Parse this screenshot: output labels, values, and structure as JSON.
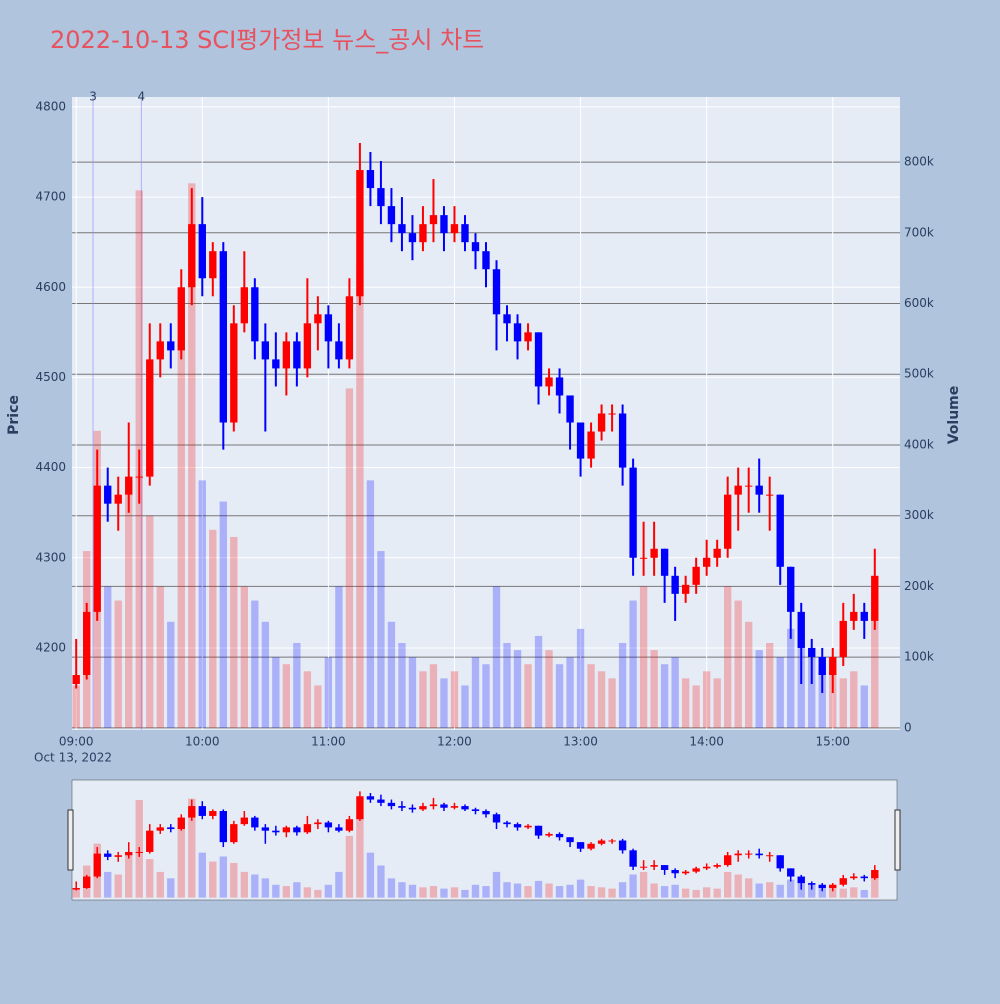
{
  "chart_data": {
    "type": "candlestick",
    "title": "2022-10-13 SCI평가정보 뉴스_공시 차트",
    "ylabel": "Price",
    "y2label": "Volume",
    "x_date_label": "Oct 13, 2022",
    "up_color": "#ff0000",
    "down_color": "#0000ff",
    "x": [
      "09:00",
      "09:05",
      "09:10",
      "09:15",
      "09:20",
      "09:25",
      "09:30",
      "09:35",
      "09:40",
      "09:45",
      "09:50",
      "09:55",
      "10:00",
      "10:05",
      "10:10",
      "10:15",
      "10:20",
      "10:25",
      "10:30",
      "10:35",
      "10:40",
      "10:45",
      "10:50",
      "10:55",
      "11:00",
      "11:05",
      "11:10",
      "11:15",
      "11:20",
      "11:25",
      "11:30",
      "11:35",
      "11:40",
      "11:45",
      "11:50",
      "11:55",
      "12:00",
      "12:05",
      "12:10",
      "12:15",
      "12:20",
      "12:25",
      "12:30",
      "12:35",
      "12:40",
      "12:45",
      "12:50",
      "12:55",
      "13:00",
      "13:05",
      "13:10",
      "13:15",
      "13:20",
      "13:25",
      "13:30",
      "13:35",
      "13:40",
      "13:45",
      "13:50",
      "13:55",
      "14:00",
      "14:05",
      "14:10",
      "14:15",
      "14:20",
      "14:25",
      "14:30",
      "14:35",
      "14:40",
      "14:45",
      "14:50",
      "14:55",
      "15:00",
      "15:05",
      "15:10",
      "15:15",
      "15:20"
    ],
    "open": [
      4160,
      4170,
      4240,
      4380,
      4360,
      4370,
      4390,
      4390,
      4520,
      4540,
      4530,
      4600,
      4670,
      4610,
      4640,
      4450,
      4560,
      4600,
      4540,
      4520,
      4510,
      4540,
      4510,
      4560,
      4570,
      4540,
      4520,
      4590,
      4730,
      4710,
      4690,
      4670,
      4660,
      4650,
      4670,
      4680,
      4660,
      4670,
      4650,
      4640,
      4620,
      4570,
      4560,
      4540,
      4550,
      4490,
      4500,
      4480,
      4450,
      4410,
      4440,
      4460,
      4460,
      4400,
      4300,
      4300,
      4310,
      4280,
      4260,
      4270,
      4290,
      4300,
      4310,
      4370,
      4380,
      4380,
      4370,
      4370,
      4290,
      4240,
      4200,
      4190,
      4170,
      4190,
      4230,
      4240,
      4230
    ],
    "high": [
      4210,
      4250,
      4420,
      4400,
      4390,
      4450,
      4420,
      4560,
      4560,
      4560,
      4620,
      4710,
      4700,
      4650,
      4650,
      4580,
      4640,
      4610,
      4560,
      4550,
      4550,
      4550,
      4610,
      4590,
      4580,
      4560,
      4610,
      4760,
      4750,
      4740,
      4710,
      4700,
      4680,
      4690,
      4720,
      4690,
      4690,
      4680,
      4660,
      4650,
      4630,
      4580,
      4570,
      4560,
      4550,
      4510,
      4510,
      4480,
      4450,
      4450,
      4470,
      4470,
      4470,
      4410,
      4340,
      4340,
      4310,
      4290,
      4280,
      4300,
      4320,
      4320,
      4390,
      4400,
      4400,
      4410,
      4390,
      4370,
      4290,
      4250,
      4210,
      4200,
      4200,
      4250,
      4260,
      4250,
      4310
    ],
    "low": [
      4155,
      4165,
      4230,
      4340,
      4330,
      4350,
      4360,
      4380,
      4500,
      4510,
      4520,
      4580,
      4590,
      4590,
      4420,
      4440,
      4550,
      4520,
      4440,
      4490,
      4480,
      4490,
      4500,
      4530,
      4510,
      4510,
      4510,
      4580,
      4690,
      4670,
      4650,
      4640,
      4630,
      4640,
      4650,
      4640,
      4650,
      4640,
      4620,
      4600,
      4530,
      4540,
      4520,
      4530,
      4470,
      4480,
      4460,
      4420,
      4390,
      4400,
      4430,
      4440,
      4380,
      4280,
      4280,
      4280,
      4250,
      4230,
      4250,
      4260,
      4280,
      4290,
      4300,
      4330,
      4350,
      4350,
      4330,
      4270,
      4210,
      4160,
      4160,
      4150,
      4150,
      4180,
      4220,
      4210,
      4220
    ],
    "close": [
      4170,
      4240,
      4380,
      4360,
      4370,
      4390,
      4390,
      4520,
      4540,
      4530,
      4600,
      4670,
      4610,
      4640,
      4450,
      4560,
      4600,
      4540,
      4520,
      4510,
      4540,
      4510,
      4560,
      4570,
      4540,
      4520,
      4590,
      4730,
      4710,
      4690,
      4670,
      4660,
      4650,
      4670,
      4680,
      4660,
      4670,
      4650,
      4640,
      4620,
      4570,
      4560,
      4540,
      4550,
      4490,
      4500,
      4480,
      4450,
      4410,
      4440,
      4460,
      4460,
      4400,
      4300,
      4300,
      4310,
      4280,
      4260,
      4270,
      4290,
      4300,
      4310,
      4370,
      4380,
      4380,
      4370,
      4370,
      4290,
      4240,
      4200,
      4190,
      4170,
      4190,
      4230,
      4240,
      4230,
      4280
    ],
    "volume": [
      60000,
      250000,
      420000,
      200000,
      180000,
      350000,
      760000,
      300000,
      200000,
      150000,
      550000,
      770000,
      350000,
      280000,
      320000,
      270000,
      200000,
      180000,
      150000,
      100000,
      90000,
      120000,
      80000,
      60000,
      100000,
      200000,
      480000,
      650000,
      350000,
      250000,
      150000,
      120000,
      100000,
      80000,
      90000,
      70000,
      80000,
      60000,
      100000,
      90000,
      200000,
      120000,
      110000,
      90000,
      130000,
      110000,
      90000,
      100000,
      140000,
      90000,
      80000,
      70000,
      120000,
      180000,
      200000,
      110000,
      90000,
      100000,
      70000,
      60000,
      80000,
      70000,
      200000,
      180000,
      150000,
      110000,
      120000,
      100000,
      140000,
      130000,
      100000,
      80000,
      90000,
      70000,
      80000,
      60000,
      190000
    ],
    "xlim": [
      "08:58",
      "15:32"
    ],
    "xticks": [
      "09:00",
      "10:00",
      "11:00",
      "12:00",
      "13:00",
      "14:00",
      "15:00"
    ],
    "ylim": [
      4109,
      4811
    ],
    "yticks": [
      4200,
      4300,
      4400,
      4500,
      4600,
      4700,
      4800
    ],
    "y2lim": [
      -3000,
      892000
    ],
    "y2ticks": [
      {
        "value": 0,
        "label": "0"
      },
      {
        "value": 100000,
        "label": "100k"
      },
      {
        "value": 200000,
        "label": "200k"
      },
      {
        "value": 300000,
        "label": "300k"
      },
      {
        "value": 400000,
        "label": "400k"
      },
      {
        "value": 500000,
        "label": "500k"
      },
      {
        "value": 600000,
        "label": "600k"
      },
      {
        "value": 700000,
        "label": "700k"
      },
      {
        "value": 800000,
        "label": "800k"
      }
    ],
    "annotations": [
      {
        "x": "09:08",
        "text": "3"
      },
      {
        "x": "09:31",
        "text": "4"
      }
    ],
    "grid": true,
    "range_slider": true
  }
}
